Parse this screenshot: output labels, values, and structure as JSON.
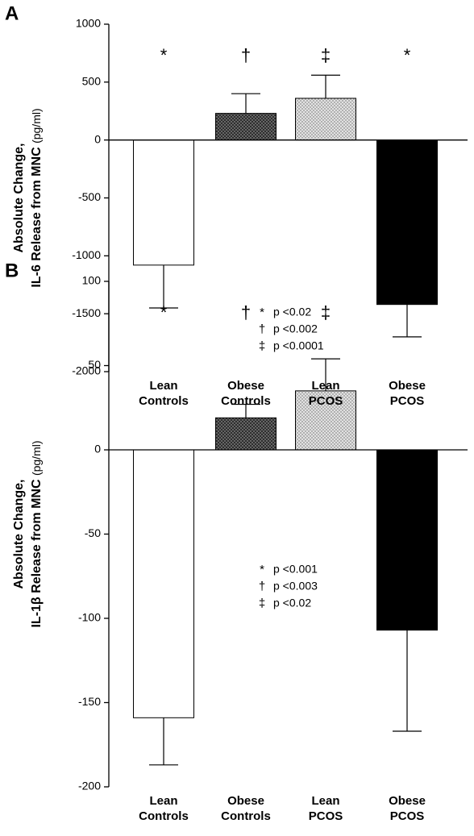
{
  "chart_data": [
    {
      "type": "bar",
      "panel": "A",
      "ylabel": "Absolute Change,",
      "ylabel2": "IL-6 Release from MNC",
      "yunit": "(pg/ml)",
      "categories": [
        "Lean Controls",
        "Obese Controls",
        "Lean PCOS",
        "Obese PCOS"
      ],
      "values": [
        -1080,
        230,
        360,
        -1420
      ],
      "errors": [
        370,
        170,
        200,
        280
      ],
      "colors": [
        "#ffffff",
        "#2e2e2e",
        "#e2e2e2",
        "#000000"
      ],
      "dotted": [
        false,
        true,
        true,
        false
      ],
      "markers": [
        "*",
        "†",
        "‡",
        "*"
      ],
      "legend": [
        {
          "symbol": "*",
          "text": "p <0.02"
        },
        {
          "symbol": "†",
          "text": "p <0.002"
        },
        {
          "symbol": "‡",
          "text": "p <0.0001"
        }
      ],
      "ylim": [
        -2000,
        1000
      ],
      "yticks": [
        -2000,
        -1500,
        -1000,
        -500,
        0,
        500,
        1000
      ]
    },
    {
      "type": "bar",
      "panel": "B",
      "ylabel": "Absolute Change,",
      "ylabel2": "IL-1β Release from MNC",
      "yunit": "(pg/ml)",
      "categories": [
        "Lean Controls",
        "Obese Controls",
        "Lean PCOS",
        "Obese PCOS"
      ],
      "values": [
        -159,
        19,
        35,
        -107
      ],
      "errors": [
        28,
        8,
        19,
        60
      ],
      "colors": [
        "#ffffff",
        "#2e2e2e",
        "#e2e2e2",
        "#000000"
      ],
      "dotted": [
        false,
        true,
        true,
        false
      ],
      "markers": [
        "*",
        "†",
        "‡"
      ],
      "legend": [
        {
          "symbol": "*",
          "text": "p <0.001"
        },
        {
          "symbol": "†",
          "text": "p <0.003"
        },
        {
          "symbol": "‡",
          "text": "p <0.02"
        }
      ],
      "ylim": [
        -200,
        100
      ],
      "yticks": [
        -200,
        -150,
        -100,
        -50,
        0,
        50,
        100
      ]
    }
  ]
}
